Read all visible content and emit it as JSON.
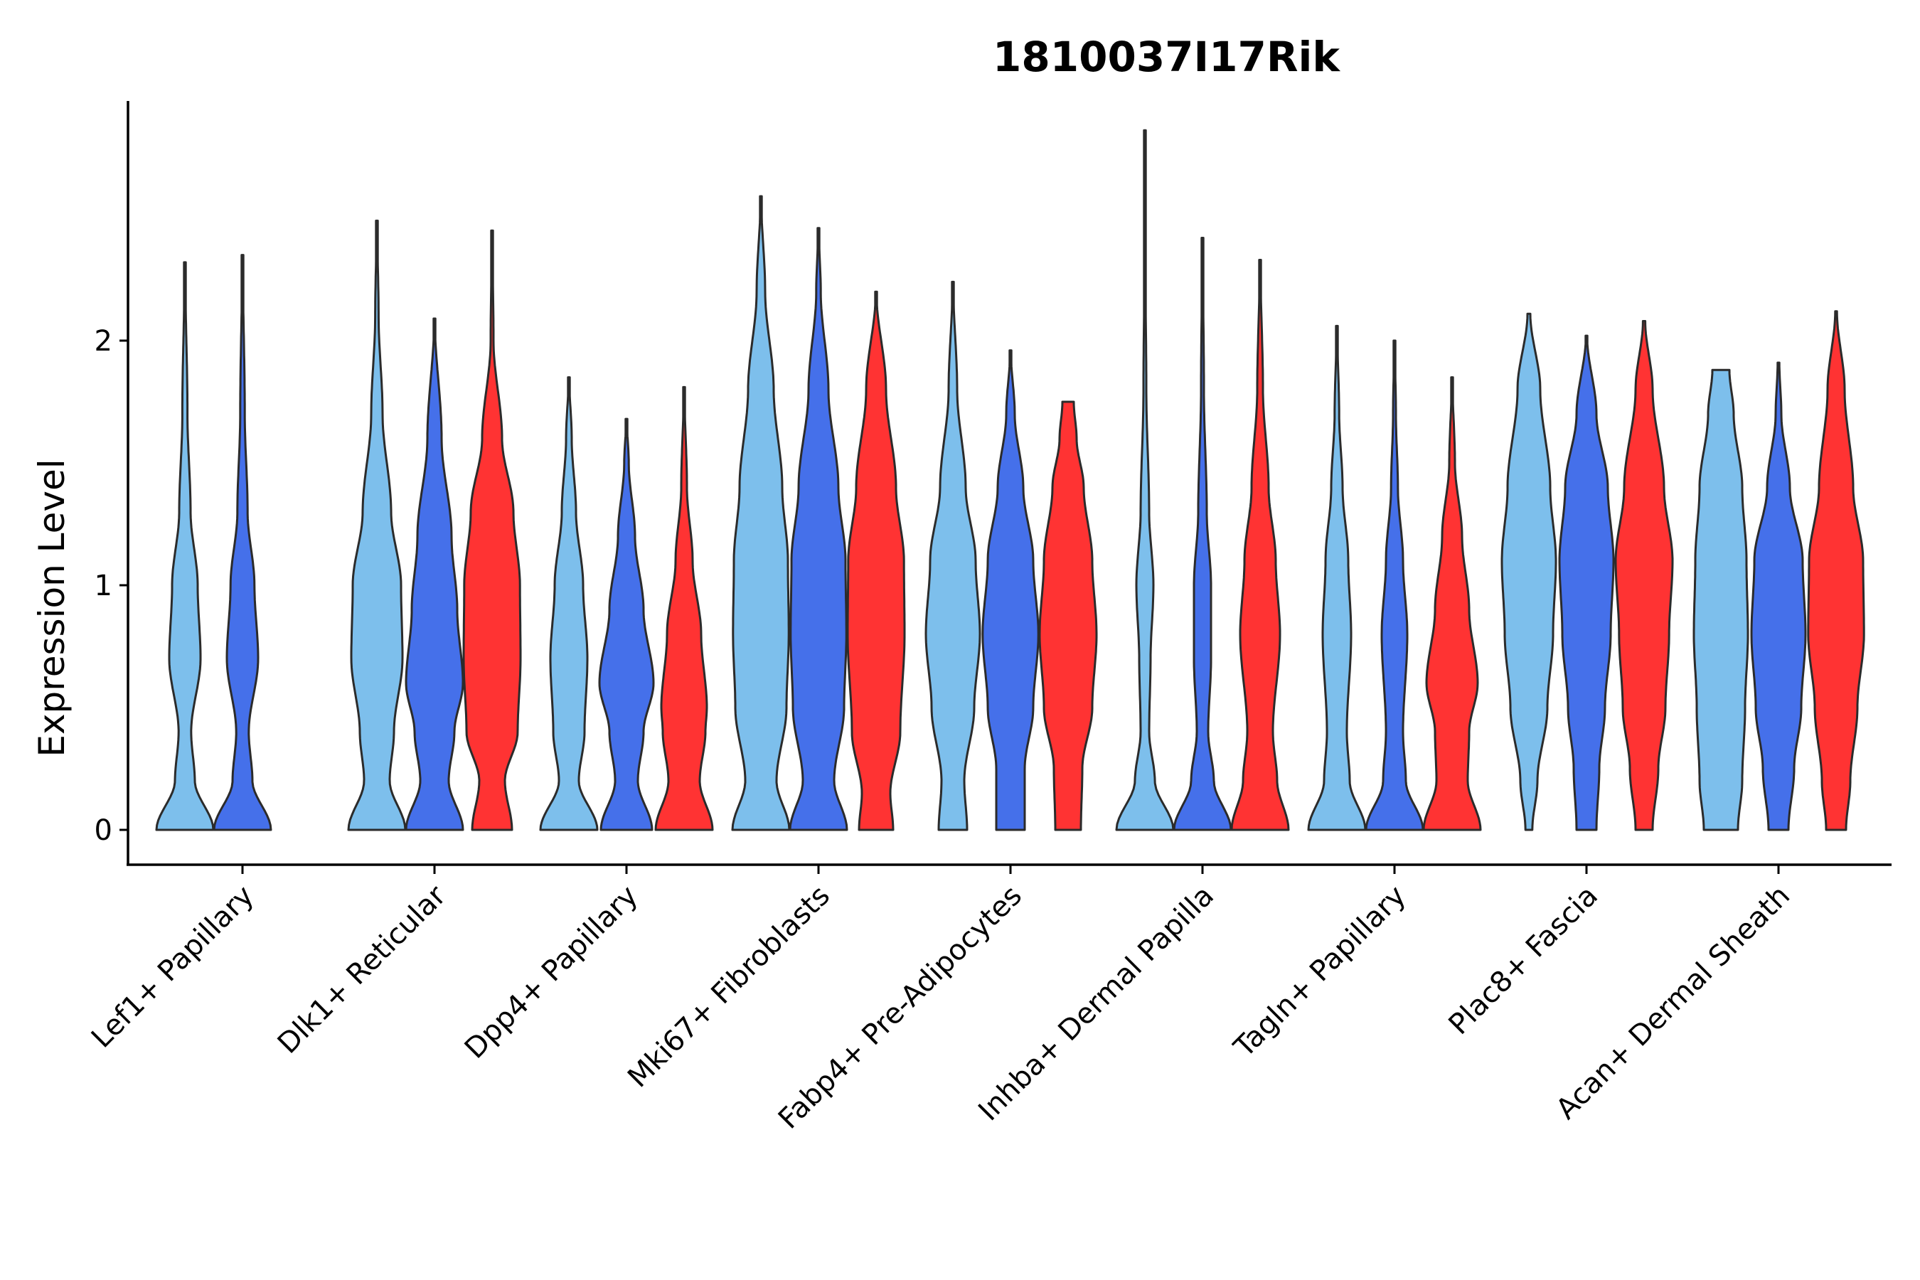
{
  "chart_data": {
    "type": "violin",
    "title": "1810037I17Rik",
    "xlabel": "",
    "ylabel": "Expression Level",
    "ylim": [
      -0.14,
      3.0
    ],
    "yticks": [
      0,
      1,
      2
    ],
    "legend": "none",
    "categories": [
      "Lef1+ Papillary",
      "Dlk1+ Reticular",
      "Dpp4+ Papillary",
      "Mki67+ Fibroblasts",
      "Fabp4+ Pre-Adipocytes",
      "Inhba+ Dermal Papilla",
      "Tagln+ Papillary",
      "Plac8+ Fascia",
      "Acan+ Dermal Sheath"
    ],
    "series": [
      {
        "color": "#7DBFEC",
        "max": [
          2.32,
          2.49,
          1.85,
          2.59,
          2.24,
          2.86,
          2.06,
          2.11,
          1.88
        ]
      },
      {
        "color": "#4570EA",
        "max": [
          2.35,
          2.09,
          1.68,
          2.46,
          1.96,
          2.42,
          2.0,
          2.02,
          1.91
        ]
      },
      {
        "color": "#FF3333",
        "max": [
          null,
          2.45,
          1.81,
          2.2,
          1.75,
          2.33,
          1.85,
          2.08,
          2.12
        ]
      }
    ],
    "shapes": [
      [
        [
          [
            0,
            1.0
          ],
          [
            0.2,
            0.35
          ],
          [
            0.4,
            0.22
          ],
          [
            0.7,
            0.55
          ],
          [
            1.0,
            0.45
          ],
          [
            1.3,
            0.2
          ],
          [
            1.7,
            0.09
          ],
          [
            2.32,
            0.01
          ]
        ],
        [
          [
            0,
            1.0
          ],
          [
            0.2,
            0.35
          ],
          [
            0.4,
            0.22
          ],
          [
            0.7,
            0.55
          ],
          [
            1.0,
            0.42
          ],
          [
            1.3,
            0.18
          ],
          [
            1.7,
            0.08
          ],
          [
            2.35,
            0.01
          ]
        ],
        null
      ],
      [
        [
          [
            0,
            1.0
          ],
          [
            0.2,
            0.45
          ],
          [
            0.4,
            0.6
          ],
          [
            0.7,
            0.9
          ],
          [
            1.0,
            0.85
          ],
          [
            1.3,
            0.5
          ],
          [
            1.7,
            0.2
          ],
          [
            2.1,
            0.06
          ],
          [
            2.49,
            0.01
          ]
        ],
        [
          [
            0,
            1.0
          ],
          [
            0.2,
            0.5
          ],
          [
            0.4,
            0.7
          ],
          [
            0.6,
            1.0
          ],
          [
            0.9,
            0.8
          ],
          [
            1.2,
            0.6
          ],
          [
            1.6,
            0.25
          ],
          [
            2.09,
            0.01
          ]
        ],
        [
          [
            0,
            0.7
          ],
          [
            0.2,
            0.45
          ],
          [
            0.4,
            0.9
          ],
          [
            0.7,
            1.0
          ],
          [
            1.0,
            0.98
          ],
          [
            1.3,
            0.75
          ],
          [
            1.6,
            0.35
          ],
          [
            2.0,
            0.05
          ],
          [
            2.45,
            0.01
          ]
        ]
      ],
      [
        [
          [
            0,
            1.0
          ],
          [
            0.2,
            0.35
          ],
          [
            0.4,
            0.55
          ],
          [
            0.7,
            0.65
          ],
          [
            1.0,
            0.5
          ],
          [
            1.3,
            0.25
          ],
          [
            1.6,
            0.1
          ],
          [
            1.85,
            0.01
          ]
        ],
        [
          [
            0,
            0.9
          ],
          [
            0.2,
            0.4
          ],
          [
            0.4,
            0.6
          ],
          [
            0.6,
            0.95
          ],
          [
            0.9,
            0.6
          ],
          [
            1.2,
            0.3
          ],
          [
            1.5,
            0.08
          ],
          [
            1.68,
            0.01
          ]
        ],
        [
          [
            0,
            1.0
          ],
          [
            0.2,
            0.55
          ],
          [
            0.4,
            0.75
          ],
          [
            0.5,
            0.8
          ],
          [
            0.8,
            0.6
          ],
          [
            1.1,
            0.3
          ],
          [
            1.4,
            0.1
          ],
          [
            1.81,
            0.01
          ]
        ]
      ],
      [
        [
          [
            0,
            1.0
          ],
          [
            0.2,
            0.55
          ],
          [
            0.5,
            0.9
          ],
          [
            0.8,
            0.98
          ],
          [
            1.1,
            0.95
          ],
          [
            1.4,
            0.75
          ],
          [
            1.8,
            0.45
          ],
          [
            2.2,
            0.15
          ],
          [
            2.59,
            0.01
          ]
        ],
        [
          [
            0,
            1.0
          ],
          [
            0.2,
            0.55
          ],
          [
            0.5,
            0.9
          ],
          [
            0.8,
            0.98
          ],
          [
            1.1,
            0.95
          ],
          [
            1.4,
            0.7
          ],
          [
            1.8,
            0.35
          ],
          [
            2.2,
            0.08
          ],
          [
            2.46,
            0.01
          ]
        ],
        [
          [
            0,
            0.6
          ],
          [
            0.15,
            0.5
          ],
          [
            0.4,
            0.85
          ],
          [
            0.8,
            1.0
          ],
          [
            1.1,
            0.98
          ],
          [
            1.4,
            0.7
          ],
          [
            1.8,
            0.35
          ],
          [
            2.2,
            0.01
          ]
        ]
      ],
      [
        [
          [
            0,
            0.5
          ],
          [
            0.2,
            0.4
          ],
          [
            0.5,
            0.75
          ],
          [
            0.8,
            0.95
          ],
          [
            1.1,
            0.8
          ],
          [
            1.4,
            0.45
          ],
          [
            1.8,
            0.15
          ],
          [
            2.24,
            0.01
          ]
        ],
        [
          [
            0,
            0.5
          ],
          [
            0.25,
            0.5
          ],
          [
            0.5,
            0.8
          ],
          [
            0.8,
            0.98
          ],
          [
            1.1,
            0.8
          ],
          [
            1.4,
            0.45
          ],
          [
            1.7,
            0.15
          ],
          [
            1.96,
            0.01
          ]
        ],
        [
          [
            0,
            0.45
          ],
          [
            0.25,
            0.5
          ],
          [
            0.5,
            0.85
          ],
          [
            0.8,
            1.0
          ],
          [
            1.1,
            0.85
          ],
          [
            1.4,
            0.55
          ],
          [
            1.6,
            0.3
          ],
          [
            1.75,
            0.2
          ]
        ]
      ],
      [
        [
          [
            0,
            1.0
          ],
          [
            0.2,
            0.35
          ],
          [
            0.4,
            0.15
          ],
          [
            0.7,
            0.2
          ],
          [
            1.0,
            0.3
          ],
          [
            1.3,
            0.15
          ],
          [
            1.8,
            0.05
          ],
          [
            2.3,
            0.02
          ],
          [
            2.86,
            0.01
          ]
        ],
        [
          [
            0,
            1.0
          ],
          [
            0.2,
            0.4
          ],
          [
            0.4,
            0.2
          ],
          [
            0.7,
            0.3
          ],
          [
            1.0,
            0.3
          ],
          [
            1.3,
            0.15
          ],
          [
            1.8,
            0.05
          ],
          [
            2.42,
            0.01
          ]
        ],
        [
          [
            0,
            1.0
          ],
          [
            0.2,
            0.6
          ],
          [
            0.4,
            0.45
          ],
          [
            0.8,
            0.7
          ],
          [
            1.1,
            0.55
          ],
          [
            1.4,
            0.3
          ],
          [
            1.8,
            0.1
          ],
          [
            2.33,
            0.01
          ]
        ]
      ],
      [
        [
          [
            0,
            1.0
          ],
          [
            0.2,
            0.45
          ],
          [
            0.4,
            0.35
          ],
          [
            0.8,
            0.5
          ],
          [
            1.1,
            0.4
          ],
          [
            1.4,
            0.2
          ],
          [
            1.7,
            0.08
          ],
          [
            2.06,
            0.01
          ]
        ],
        [
          [
            0,
            1.0
          ],
          [
            0.2,
            0.4
          ],
          [
            0.4,
            0.3
          ],
          [
            0.8,
            0.45
          ],
          [
            1.1,
            0.3
          ],
          [
            1.4,
            0.12
          ],
          [
            1.7,
            0.05
          ],
          [
            2.0,
            0.01
          ]
        ],
        [
          [
            0,
            1.0
          ],
          [
            0.2,
            0.55
          ],
          [
            0.4,
            0.6
          ],
          [
            0.6,
            0.9
          ],
          [
            0.9,
            0.6
          ],
          [
            1.2,
            0.35
          ],
          [
            1.5,
            0.1
          ],
          [
            1.85,
            0.01
          ]
        ]
      ],
      [
        [
          [
            0,
            0.12
          ],
          [
            0.2,
            0.3
          ],
          [
            0.5,
            0.65
          ],
          [
            0.8,
            0.85
          ],
          [
            1.1,
            0.95
          ],
          [
            1.4,
            0.75
          ],
          [
            1.8,
            0.4
          ],
          [
            2.11,
            0.05
          ]
        ],
        [
          [
            0,
            0.35
          ],
          [
            0.25,
            0.45
          ],
          [
            0.5,
            0.65
          ],
          [
            0.8,
            0.85
          ],
          [
            1.1,
            0.95
          ],
          [
            1.4,
            0.75
          ],
          [
            1.7,
            0.35
          ],
          [
            2.02,
            0.02
          ]
        ],
        [
          [
            0,
            0.3
          ],
          [
            0.25,
            0.5
          ],
          [
            0.5,
            0.75
          ],
          [
            0.8,
            0.88
          ],
          [
            1.1,
            1.0
          ],
          [
            1.4,
            0.7
          ],
          [
            1.8,
            0.3
          ],
          [
            2.08,
            0.04
          ]
        ]
      ],
      [
        [
          [
            0,
            0.6
          ],
          [
            0.2,
            0.75
          ],
          [
            0.5,
            0.85
          ],
          [
            0.8,
            0.95
          ],
          [
            1.1,
            0.9
          ],
          [
            1.4,
            0.75
          ],
          [
            1.7,
            0.45
          ],
          [
            1.88,
            0.3
          ]
        ],
        [
          [
            0,
            0.35
          ],
          [
            0.25,
            0.55
          ],
          [
            0.5,
            0.8
          ],
          [
            0.8,
            0.95
          ],
          [
            1.1,
            0.85
          ],
          [
            1.4,
            0.4
          ],
          [
            1.7,
            0.1
          ],
          [
            1.91,
            0.03
          ]
        ],
        [
          [
            0,
            0.35
          ],
          [
            0.2,
            0.5
          ],
          [
            0.5,
            0.75
          ],
          [
            0.8,
            0.98
          ],
          [
            1.1,
            0.95
          ],
          [
            1.4,
            0.6
          ],
          [
            1.8,
            0.3
          ],
          [
            2.12,
            0.03
          ]
        ]
      ]
    ]
  }
}
